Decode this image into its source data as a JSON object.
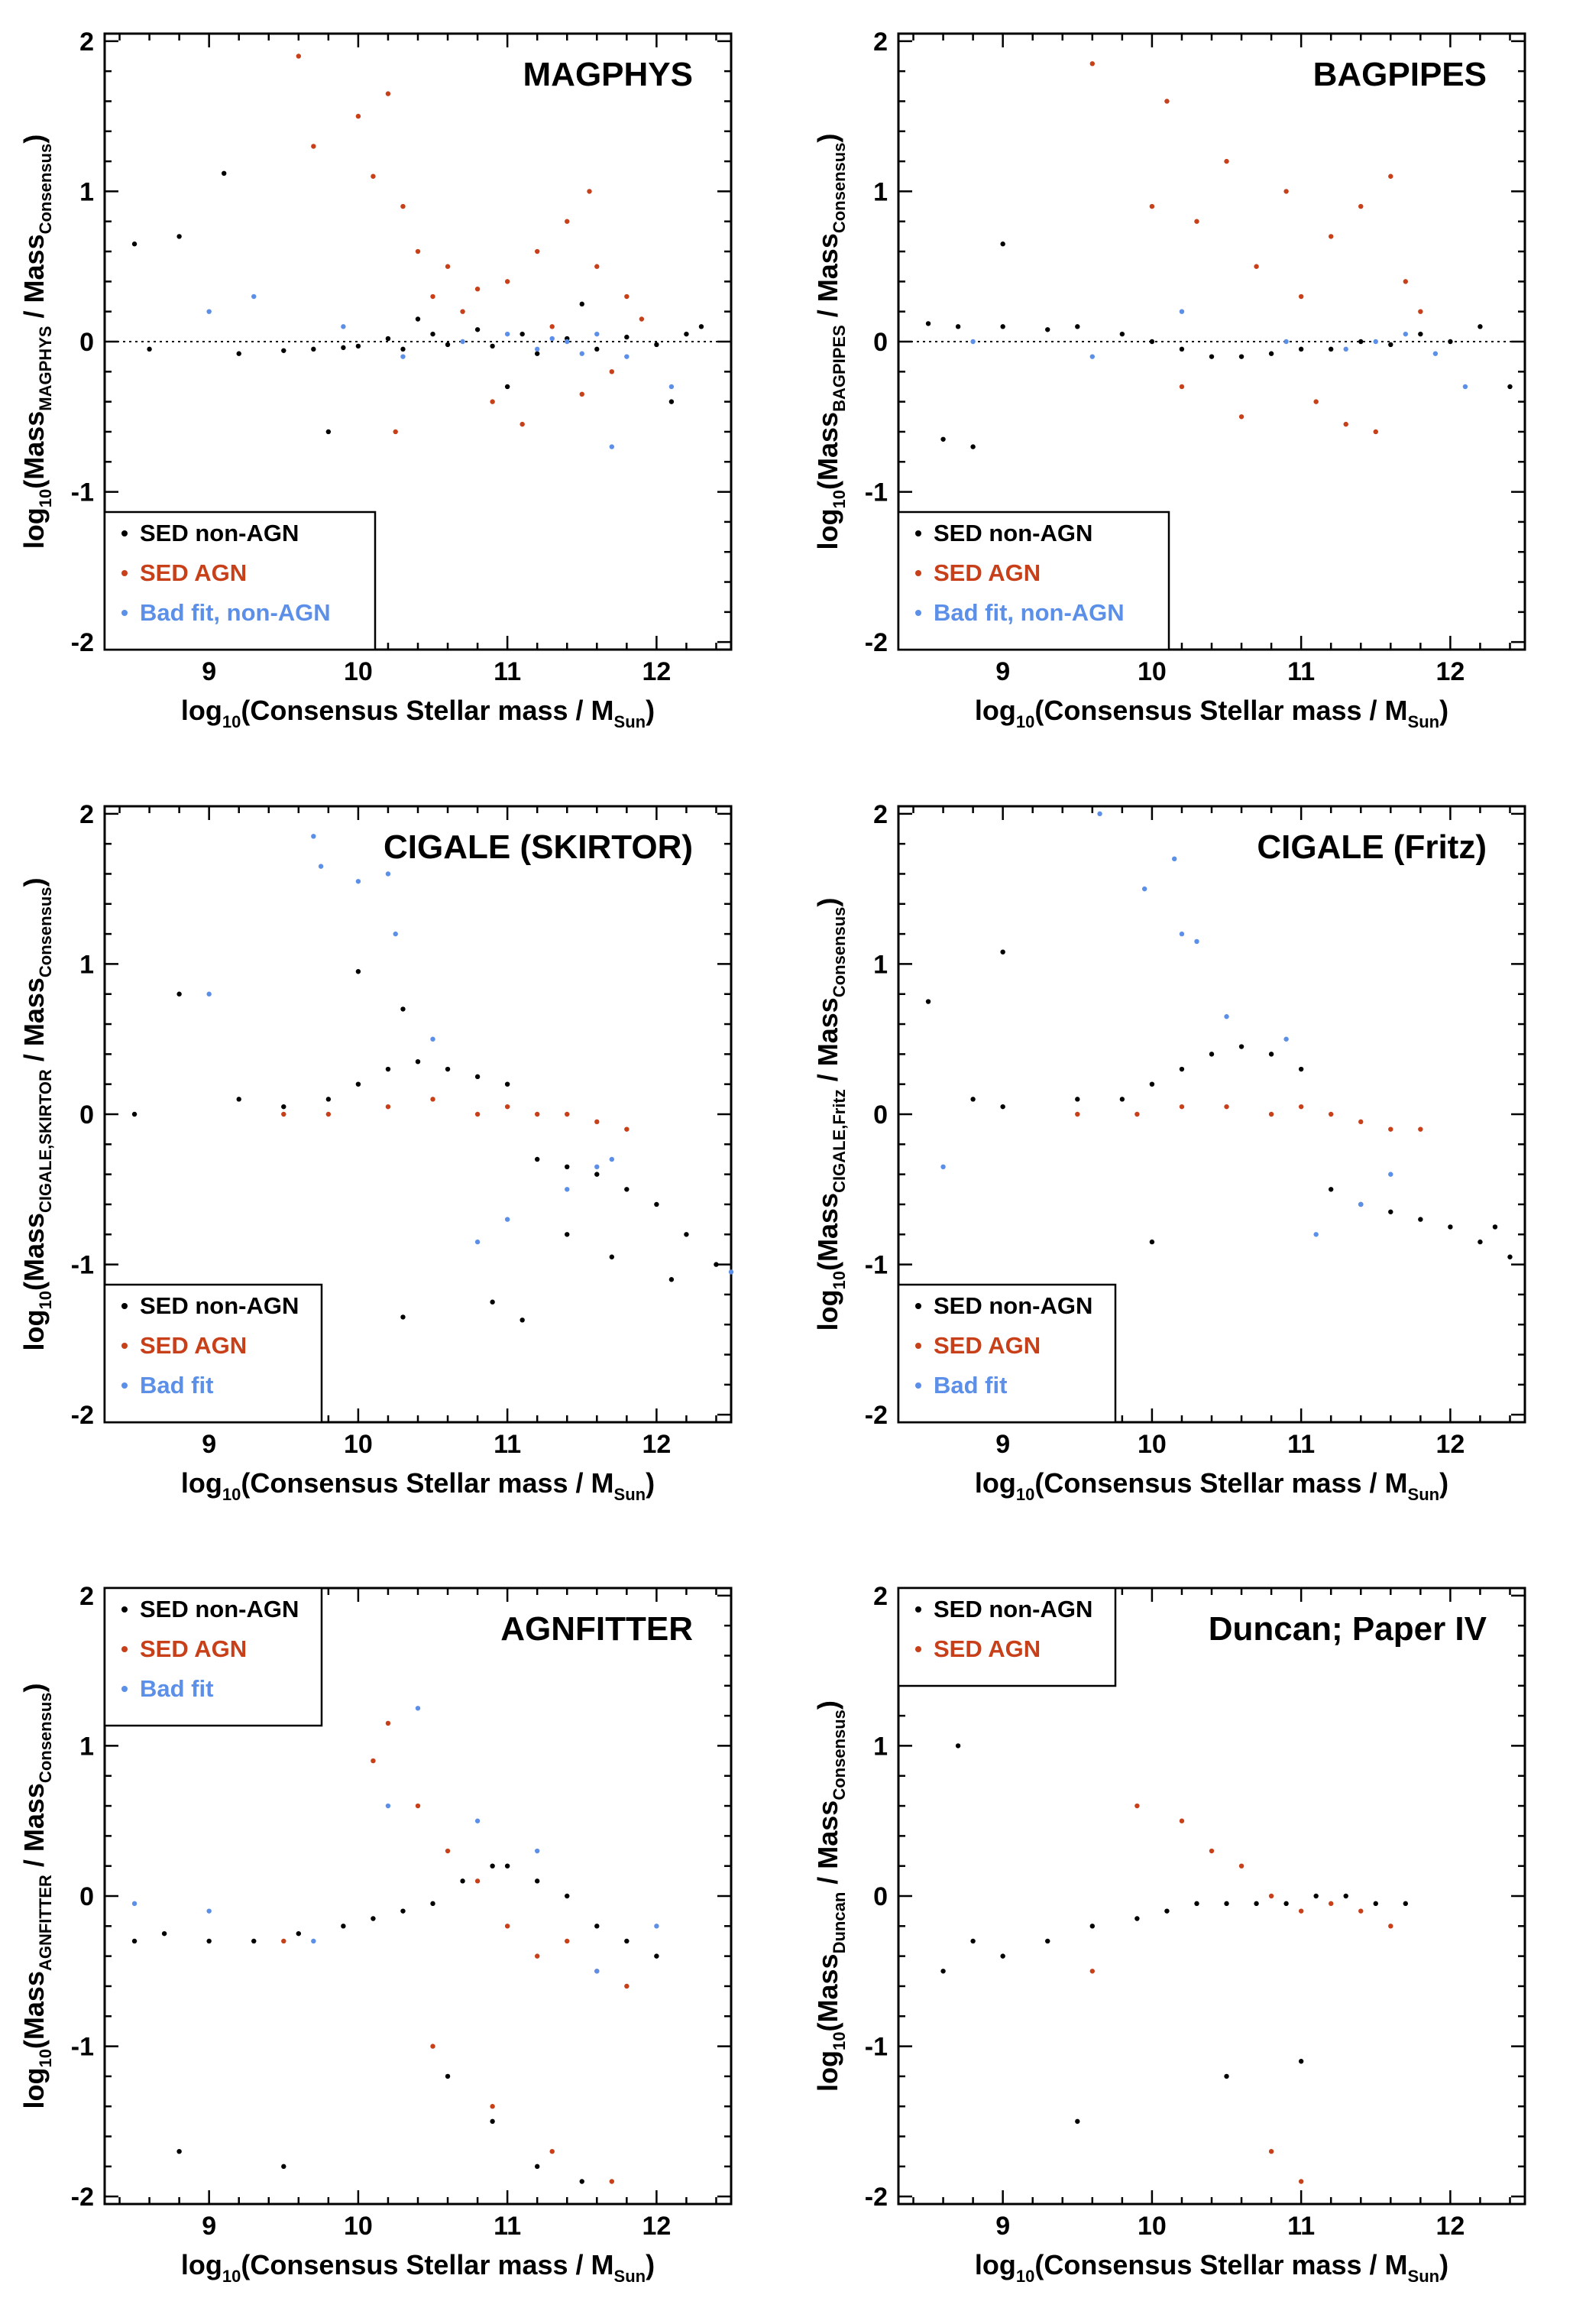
{
  "figure": {
    "colors": {
      "non_agn": "#000000",
      "agn": "#c8401a",
      "bad_fit": "#5b8fe8"
    }
  },
  "chart_data": [
    {
      "type": "scatter",
      "title": "MAGPHYS",
      "xlabel": {
        "pre": "log",
        "pre_sub": "10",
        "main": "(Consensus Stellar mass / M",
        "sub": "Sun",
        "post": ")"
      },
      "ylabel": {
        "pre": "log",
        "pre_sub": "10",
        "main": "(Mass",
        "sub": "MAGPHYS",
        "mid": " / Mass",
        "sub2": "Consensus",
        "post": ")"
      },
      "xlim": [
        8.3,
        12.5
      ],
      "ylim": [
        -2.05,
        2.05
      ],
      "xticks": [
        "9",
        "10",
        "11",
        "12"
      ],
      "yticks": [
        "-2",
        "-1",
        "0",
        "1",
        "2"
      ],
      "zero_line": true,
      "legend": {
        "position": "bottom-left",
        "entries": [
          {
            "label": "SED non-AGN",
            "color": "#000000"
          },
          {
            "label": "SED AGN",
            "color": "#c8401a"
          },
          {
            "label": "Bad fit, non-AGN",
            "color": "#5b8fe8"
          }
        ]
      },
      "series": [
        {
          "name": "SED non-AGN",
          "color": "#000000",
          "x": [
            8.6,
            8.8,
            9.2,
            9.5,
            9.7,
            9.9,
            10.0,
            10.2,
            10.3,
            10.5,
            10.6,
            10.8,
            10.9,
            11.1,
            11.2,
            11.4,
            11.6,
            11.8,
            12.0,
            12.2,
            8.5,
            9.1,
            9.8,
            10.4,
            11.0,
            11.5,
            12.1,
            12.3
          ],
          "y": [
            -0.05,
            0.7,
            -0.08,
            -0.06,
            -0.05,
            -0.04,
            -0.03,
            0.02,
            -0.05,
            0.05,
            -0.02,
            0.08,
            -0.03,
            0.05,
            -0.08,
            0.02,
            -0.05,
            0.03,
            -0.02,
            0.05,
            0.65,
            1.12,
            -0.6,
            0.15,
            -0.3,
            0.25,
            -0.4,
            0.1
          ]
        },
        {
          "name": "SED AGN",
          "color": "#c8401a",
          "x": [
            9.6,
            9.7,
            10.0,
            10.1,
            10.2,
            10.3,
            10.4,
            10.5,
            10.6,
            10.7,
            10.8,
            10.9,
            11.0,
            11.1,
            11.2,
            11.3,
            11.4,
            11.5,
            11.6,
            11.7,
            11.8,
            11.9,
            10.25,
            11.55
          ],
          "y": [
            1.9,
            1.3,
            1.5,
            1.1,
            1.65,
            0.9,
            0.6,
            0.3,
            0.5,
            0.2,
            0.35,
            -0.4,
            0.4,
            -0.55,
            0.6,
            0.1,
            0.8,
            -0.35,
            0.5,
            -0.2,
            0.3,
            0.15,
            -0.6,
            1.0
          ]
        },
        {
          "name": "Bad fit, non-AGN",
          "color": "#5b8fe8",
          "x": [
            9.0,
            9.3,
            9.9,
            10.3,
            10.7,
            11.0,
            11.2,
            11.3,
            11.4,
            11.5,
            11.6,
            11.7,
            11.8,
            12.1
          ],
          "y": [
            0.2,
            0.3,
            0.1,
            -0.1,
            0.0,
            0.05,
            -0.05,
            0.02,
            0.0,
            -0.08,
            0.05,
            -0.7,
            -0.1,
            -0.3
          ]
        }
      ]
    },
    {
      "type": "scatter",
      "title": "BAGPIPES",
      "xlabel": {
        "pre": "log",
        "pre_sub": "10",
        "main": "(Consensus Stellar mass / M",
        "sub": "Sun",
        "post": ")"
      },
      "ylabel": {
        "pre": "log",
        "pre_sub": "10",
        "main": "(Mass",
        "sub": "BAGPIPES",
        "mid": " / Mass",
        "sub2": "Consensus",
        "post": ")"
      },
      "xlim": [
        8.3,
        12.5
      ],
      "ylim": [
        -2.05,
        2.05
      ],
      "xticks": [
        "9",
        "10",
        "11",
        "12"
      ],
      "yticks": [
        "-2",
        "-1",
        "0",
        "1",
        "2"
      ],
      "zero_line": true,
      "legend": {
        "position": "bottom-left",
        "entries": [
          {
            "label": "SED non-AGN",
            "color": "#000000"
          },
          {
            "label": "SED AGN",
            "color": "#c8401a"
          },
          {
            "label": "Bad fit, non-AGN",
            "color": "#5b8fe8"
          }
        ]
      },
      "series": [
        {
          "name": "SED non-AGN",
          "color": "#000000",
          "x": [
            8.5,
            8.7,
            9.0,
            9.3,
            9.5,
            9.8,
            10.0,
            10.2,
            10.4,
            10.6,
            10.8,
            11.0,
            11.2,
            11.4,
            11.6,
            11.8,
            12.0,
            12.2,
            8.6,
            8.8,
            9.0,
            12.4
          ],
          "y": [
            0.12,
            0.1,
            0.1,
            0.08,
            0.1,
            0.05,
            0.0,
            -0.05,
            -0.1,
            -0.1,
            -0.08,
            -0.05,
            -0.05,
            0.0,
            -0.02,
            0.05,
            0.0,
            0.1,
            -0.65,
            -0.7,
            0.65,
            -0.3
          ]
        },
        {
          "name": "SED AGN",
          "color": "#c8401a",
          "x": [
            9.6,
            10.0,
            10.1,
            10.3,
            10.5,
            10.7,
            10.9,
            11.0,
            11.2,
            11.4,
            11.5,
            11.6,
            11.7,
            11.8,
            10.2,
            10.6,
            11.1,
            11.3
          ],
          "y": [
            1.85,
            0.9,
            1.6,
            0.8,
            1.2,
            0.5,
            1.0,
            0.3,
            0.7,
            0.9,
            -0.6,
            1.1,
            0.4,
            0.2,
            -0.3,
            -0.5,
            -0.4,
            -0.55
          ]
        },
        {
          "name": "Bad fit, non-AGN",
          "color": "#5b8fe8",
          "x": [
            8.8,
            9.6,
            10.2,
            10.9,
            11.3,
            11.5,
            11.7,
            11.9,
            12.1
          ],
          "y": [
            0.0,
            -0.1,
            0.2,
            0.0,
            -0.05,
            0.0,
            0.05,
            -0.08,
            -0.3
          ]
        }
      ]
    },
    {
      "type": "scatter",
      "title": "CIGALE (SKIRTOR)",
      "xlabel": {
        "pre": "log",
        "pre_sub": "10",
        "main": "(Consensus Stellar mass / M",
        "sub": "Sun",
        "post": ")"
      },
      "ylabel": {
        "pre": "log",
        "pre_sub": "10",
        "main": "(Mass",
        "sub": "CIGALE,SKIRTOR",
        "mid": " / Mass",
        "sub2": "Consensus",
        "post": ")"
      },
      "xlim": [
        8.3,
        12.5
      ],
      "ylim": [
        -2.05,
        2.05
      ],
      "xticks": [
        "9",
        "10",
        "11",
        "12"
      ],
      "yticks": [
        "-2",
        "-1",
        "0",
        "1",
        "2"
      ],
      "zero_line": false,
      "legend": {
        "position": "bottom-left",
        "entries": [
          {
            "label": "SED non-AGN",
            "color": "#000000"
          },
          {
            "label": "SED AGN",
            "color": "#c8401a"
          },
          {
            "label": "Bad fit",
            "color": "#5b8fe8"
          }
        ]
      },
      "series": [
        {
          "name": "SED non-AGN",
          "color": "#000000",
          "x": [
            8.5,
            8.8,
            9.2,
            9.5,
            9.8,
            10.0,
            10.2,
            10.4,
            10.6,
            10.8,
            11.0,
            11.2,
            11.4,
            11.6,
            11.8,
            12.0,
            12.2,
            12.4,
            10.0,
            10.3,
            11.1,
            11.4,
            11.7,
            12.1,
            10.9,
            10.3
          ],
          "y": [
            0.0,
            0.8,
            0.1,
            0.05,
            0.1,
            0.2,
            0.3,
            0.35,
            0.3,
            0.25,
            0.2,
            -0.3,
            -0.35,
            -0.4,
            -0.5,
            -0.6,
            -0.8,
            -1.0,
            0.95,
            -1.35,
            -1.37,
            -0.8,
            -0.95,
            -1.1,
            -1.25,
            0.7
          ]
        },
        {
          "name": "SED AGN",
          "color": "#c8401a",
          "x": [
            9.5,
            9.8,
            10.2,
            10.5,
            10.8,
            11.0,
            11.2,
            11.4,
            11.6,
            11.8
          ],
          "y": [
            0.0,
            0.0,
            0.05,
            0.1,
            0.0,
            0.05,
            0.0,
            0.0,
            -0.05,
            -0.1
          ]
        },
        {
          "name": "Bad fit",
          "color": "#5b8fe8",
          "x": [
            9.0,
            9.7,
            9.75,
            10.0,
            10.2,
            10.25,
            10.5,
            10.8,
            11.0,
            11.4,
            11.6,
            11.7,
            12.5
          ],
          "y": [
            0.8,
            1.85,
            1.65,
            1.55,
            1.6,
            1.2,
            0.5,
            -0.85,
            -0.7,
            -0.5,
            -0.35,
            -0.3,
            -1.05
          ]
        }
      ]
    },
    {
      "type": "scatter",
      "title": "CIGALE (Fritz)",
      "xlabel": {
        "pre": "log",
        "pre_sub": "10",
        "main": "(Consensus Stellar mass / M",
        "sub": "Sun",
        "post": ")"
      },
      "ylabel": {
        "pre": "log",
        "pre_sub": "10",
        "main": "(Mass",
        "sub": "CIGALE,Fritz",
        "mid": " / Mass",
        "sub2": "Consensus",
        "post": ")"
      },
      "xlim": [
        8.3,
        12.5
      ],
      "ylim": [
        -2.05,
        2.05
      ],
      "xticks": [
        "9",
        "10",
        "11",
        "12"
      ],
      "yticks": [
        "-2",
        "-1",
        "0",
        "1",
        "2"
      ],
      "zero_line": false,
      "legend": {
        "position": "bottom-left",
        "entries": [
          {
            "label": "SED non-AGN",
            "color": "#000000"
          },
          {
            "label": "SED AGN",
            "color": "#c8401a"
          },
          {
            "label": "Bad fit",
            "color": "#5b8fe8"
          }
        ]
      },
      "series": [
        {
          "name": "SED non-AGN",
          "color": "#000000",
          "x": [
            8.5,
            8.8,
            9.0,
            9.5,
            9.8,
            10.0,
            10.2,
            10.4,
            10.6,
            10.8,
            11.0,
            11.2,
            11.4,
            11.6,
            11.8,
            12.0,
            12.2,
            12.4,
            9.0,
            10.0,
            12.3
          ],
          "y": [
            0.75,
            0.1,
            0.05,
            0.1,
            0.1,
            0.2,
            0.3,
            0.4,
            0.45,
            0.4,
            0.3,
            -0.5,
            -0.6,
            -0.65,
            -0.7,
            -0.75,
            -0.85,
            -0.95,
            1.08,
            -0.85,
            -0.75
          ]
        },
        {
          "name": "SED AGN",
          "color": "#c8401a",
          "x": [
            9.5,
            9.9,
            10.2,
            10.5,
            10.8,
            11.0,
            11.2,
            11.4,
            11.6,
            11.8
          ],
          "y": [
            0.0,
            0.0,
            0.05,
            0.05,
            0.0,
            0.05,
            0.0,
            -0.05,
            -0.1,
            -0.1
          ]
        },
        {
          "name": "Bad fit",
          "color": "#5b8fe8",
          "x": [
            8.6,
            9.65,
            9.95,
            10.15,
            10.2,
            10.3,
            10.5,
            10.9,
            11.1,
            11.4,
            11.6
          ],
          "y": [
            -0.35,
            2.0,
            1.5,
            1.7,
            1.2,
            1.15,
            0.65,
            0.5,
            -0.8,
            -0.6,
            -0.4
          ]
        }
      ]
    },
    {
      "type": "scatter",
      "title": "AGNFITTER",
      "xlabel": {
        "pre": "log",
        "pre_sub": "10",
        "main": "(Consensus Stellar mass / M",
        "sub": "Sun",
        "post": ")"
      },
      "ylabel": {
        "pre": "log",
        "pre_sub": "10",
        "main": "(Mass",
        "sub": "AGNFITTER",
        "mid": " / Mass",
        "sub2": "Consensus",
        "post": ")"
      },
      "xlim": [
        8.3,
        12.5
      ],
      "ylim": [
        -2.05,
        2.05
      ],
      "xticks": [
        "9",
        "10",
        "11",
        "12"
      ],
      "yticks": [
        "-2",
        "-1",
        "0",
        "1",
        "2"
      ],
      "zero_line": false,
      "legend": {
        "position": "top-left",
        "entries": [
          {
            "label": "SED non-AGN",
            "color": "#000000"
          },
          {
            "label": "SED AGN",
            "color": "#c8401a"
          },
          {
            "label": "Bad fit",
            "color": "#5b8fe8"
          }
        ]
      },
      "series": [
        {
          "name": "SED non-AGN",
          "color": "#000000",
          "x": [
            8.5,
            8.7,
            9.0,
            9.3,
            9.6,
            9.9,
            10.1,
            10.3,
            10.5,
            10.7,
            10.9,
            11.0,
            11.2,
            11.4,
            11.6,
            11.8,
            12.0,
            8.8,
            9.5,
            10.6,
            10.9,
            11.2,
            11.5
          ],
          "y": [
            -0.3,
            -0.25,
            -0.3,
            -0.3,
            -0.25,
            -0.2,
            -0.15,
            -0.1,
            -0.05,
            0.1,
            0.2,
            0.2,
            0.1,
            0.0,
            -0.2,
            -0.3,
            -0.4,
            -1.7,
            -1.8,
            -1.2,
            -1.5,
            -1.8,
            -1.9
          ]
        },
        {
          "name": "SED AGN",
          "color": "#c8401a",
          "x": [
            9.5,
            10.1,
            10.2,
            10.4,
            10.6,
            10.8,
            11.0,
            11.2,
            11.4,
            11.6,
            11.8,
            10.5,
            10.9,
            11.3,
            11.7
          ],
          "y": [
            -0.3,
            0.9,
            1.15,
            0.6,
            0.3,
            0.1,
            -0.2,
            -0.4,
            -0.3,
            -0.5,
            -0.6,
            -1.0,
            -1.4,
            -1.7,
            -1.9
          ]
        },
        {
          "name": "Bad fit",
          "color": "#5b8fe8",
          "x": [
            8.5,
            9.0,
            9.7,
            10.2,
            10.4,
            10.8,
            11.2,
            11.6,
            12.0
          ],
          "y": [
            -0.05,
            -0.1,
            -0.3,
            0.6,
            1.25,
            0.5,
            0.3,
            -0.5,
            -0.2
          ]
        }
      ]
    },
    {
      "type": "scatter",
      "title": "Duncan; Paper IV",
      "xlabel": {
        "pre": "log",
        "pre_sub": "10",
        "main": "(Consensus Stellar mass / M",
        "sub": "Sun",
        "post": ")"
      },
      "ylabel": {
        "pre": "log",
        "pre_sub": "10",
        "main": "(Mass",
        "sub": "Duncan",
        "mid": " / Mass",
        "sub2": "Consensus",
        "post": ")"
      },
      "xlim": [
        8.3,
        12.5
      ],
      "ylim": [
        -2.05,
        2.05
      ],
      "xticks": [
        "9",
        "10",
        "11",
        "12"
      ],
      "yticks": [
        "-2",
        "-1",
        "0",
        "1",
        "2"
      ],
      "zero_line": false,
      "legend": {
        "position": "top-left",
        "entries": [
          {
            "label": "SED non-AGN",
            "color": "#000000"
          },
          {
            "label": "SED AGN",
            "color": "#c8401a"
          }
        ]
      },
      "series": [
        {
          "name": "SED non-AGN",
          "color": "#000000",
          "x": [
            8.6,
            8.8,
            9.0,
            9.3,
            9.6,
            9.9,
            10.1,
            10.3,
            10.5,
            10.7,
            10.9,
            11.1,
            11.3,
            11.5,
            11.7,
            8.7,
            9.5,
            10.5,
            11.0
          ],
          "y": [
            -0.5,
            -0.3,
            -0.4,
            -0.3,
            -0.2,
            -0.15,
            -0.1,
            -0.05,
            -0.05,
            -0.05,
            -0.05,
            0.0,
            0.0,
            -0.05,
            -0.05,
            1.0,
            -1.5,
            -1.2,
            -1.1
          ]
        },
        {
          "name": "SED AGN",
          "color": "#c8401a",
          "x": [
            9.6,
            9.9,
            10.2,
            10.4,
            10.6,
            10.8,
            11.0,
            11.2,
            11.4,
            11.6,
            10.8,
            11.0
          ],
          "y": [
            -0.5,
            0.6,
            0.5,
            0.3,
            0.2,
            0.0,
            -0.1,
            -0.05,
            -0.1,
            -0.2,
            -1.7,
            -1.9
          ]
        }
      ]
    }
  ]
}
